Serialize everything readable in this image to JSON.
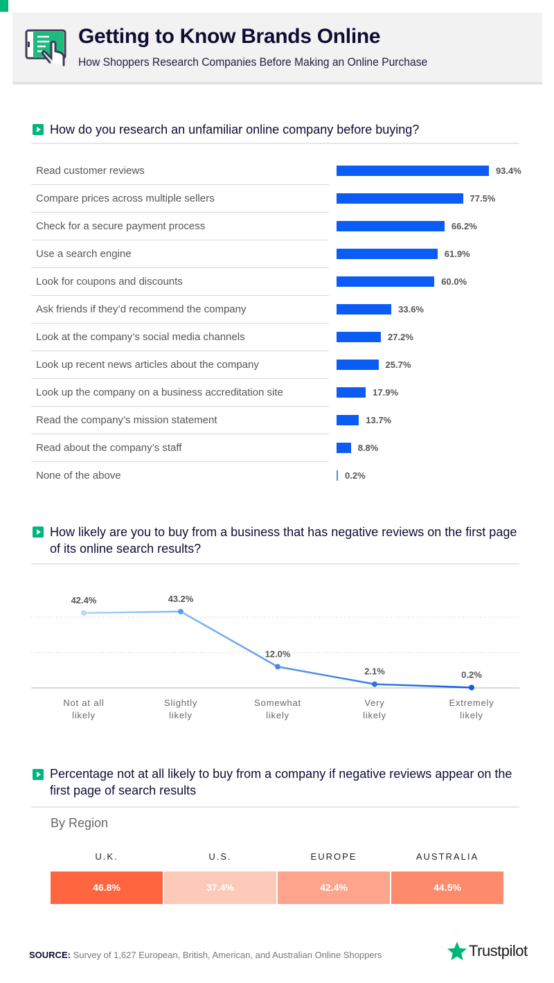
{
  "header": {
    "title": "Getting to Know Brands Online",
    "subtitle": "How Shoppers Research Companies Before Making an Online Purchase",
    "icon": "tablet-touch-icon"
  },
  "colors": {
    "brand_green": "#00b67a",
    "bar_blue": "#0a5cf5",
    "line_start": "#a9d6f8",
    "line_end": "#0f5ddc"
  },
  "chart_data": [
    {
      "type": "bar",
      "orientation": "horizontal",
      "title": "How do you research an unfamiliar online company before buying?",
      "categories": [
        "Read customer reviews",
        "Compare prices across multiple sellers",
        "Check for a secure payment process",
        "Use a search engine",
        "Look for coupons and discounts",
        "Ask friends if they’d recommend the company",
        "Look at the company’s social media channels",
        "Look up recent news articles about the company",
        "Look up the company on a business accreditation site",
        "Read the company’s mission statement",
        "Read about the company’s staff",
        "None of the above"
      ],
      "values": [
        93.4,
        77.5,
        66.2,
        61.9,
        60.0,
        33.6,
        27.2,
        25.7,
        17.9,
        13.7,
        8.8,
        0.2
      ],
      "labels": [
        "93.4%",
        "77.5%",
        "66.2%",
        "61.9%",
        "60.0%",
        "33.6%",
        "27.2%",
        "25.7%",
        "17.9%",
        "13.7%",
        "8.8%",
        "0.2%"
      ],
      "unit": "%"
    },
    {
      "type": "line",
      "title": "How likely are you to buy from a business that has negative reviews on the first page of its online search results?",
      "categories": [
        [
          "Not at all",
          "likely"
        ],
        [
          "Slightly",
          "likely"
        ],
        [
          "Somewhat",
          "likely"
        ],
        [
          "Very",
          "likely"
        ],
        [
          "Extremely",
          "likely"
        ]
      ],
      "values": [
        42.4,
        43.2,
        12.0,
        2.1,
        0.2
      ],
      "labels": [
        "42.4%",
        "43.2%",
        "12.0%",
        "2.1%",
        "0.2%"
      ],
      "ylim": [
        0,
        60
      ],
      "gridlines": [
        20,
        40
      ],
      "grid": true
    },
    {
      "type": "heatmap",
      "title": "Percentage not at all likely to buy from a company if negative reviews appear on the first page of search results",
      "subtitle": "By Region",
      "categories": [
        "U.K.",
        "U.S.",
        "EUROPE",
        "AUSTRALIA"
      ],
      "values": [
        46.8,
        37.4,
        42.4,
        44.5
      ],
      "labels": [
        "46.8%",
        "37.4%",
        "42.4%",
        "44.5%"
      ],
      "colors": [
        "#ff6640",
        "#fdc9b8",
        "#fda58c",
        "#fd8a6a"
      ]
    }
  ],
  "footer": {
    "source_label": "SOURCE:",
    "source_text": " Survey of 1,627 European, British, American, and Australian Online Shoppers",
    "logo_text": "Trustpilot",
    "logo_icon": "star-icon"
  }
}
